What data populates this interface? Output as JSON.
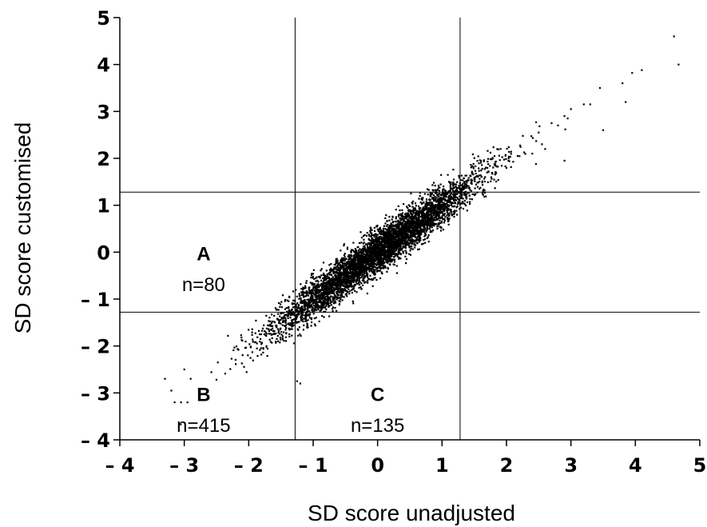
{
  "chart_data": {
    "type": "scatter",
    "xlabel": "SD score unadjusted",
    "ylabel": "SD score customised",
    "xlim": [
      -4,
      5
    ],
    "ylim": [
      -4,
      5
    ],
    "x_ticks": [
      -4,
      -3,
      -2,
      -1,
      0,
      1,
      2,
      3,
      4,
      5
    ],
    "y_ticks": [
      -4,
      -3,
      -2,
      -1,
      0,
      1,
      2,
      3,
      4,
      5
    ],
    "x_tick_labels": [
      "– 4",
      "– 3",
      "– 2",
      "– 1",
      "0",
      "1",
      "2",
      "3",
      "4",
      "5"
    ],
    "y_tick_labels": [
      "– 4",
      "– 3",
      "– 2",
      "– 1",
      "0",
      "1",
      "2",
      "3",
      "4",
      "5"
    ],
    "reference_lines": {
      "vertical": [
        -1.28,
        1.28
      ],
      "horizontal": [
        -1.28,
        1.28
      ]
    },
    "regions": [
      {
        "letter": "A",
        "count": "n=80",
        "x": -2.7,
        "y_letter": -0.17,
        "y_count": -0.83
      },
      {
        "letter": "B",
        "count": "n=415",
        "x": -2.7,
        "y_letter": -3.17,
        "y_count": -3.83
      },
      {
        "letter": "C",
        "count": "n=135",
        "x": 0.0,
        "y_letter": -3.17,
        "y_count": -3.83
      }
    ],
    "points": [
      [
        4.6,
        4.6
      ],
      [
        4.67,
        4.0
      ],
      [
        4.1,
        3.88
      ],
      [
        3.95,
        3.82
      ],
      [
        3.8,
        3.6
      ],
      [
        3.85,
        3.2
      ],
      [
        3.45,
        3.5
      ],
      [
        3.5,
        2.6
      ],
      [
        3.2,
        3.15
      ],
      [
        3.0,
        3.05
      ],
      [
        3.3,
        3.15
      ],
      [
        2.9,
        2.9
      ],
      [
        2.7,
        2.75
      ],
      [
        2.5,
        2.55
      ],
      [
        2.8,
        2.7
      ],
      [
        2.95,
        2.85
      ],
      [
        2.55,
        2.3
      ],
      [
        2.6,
        2.2
      ],
      [
        2.9,
        1.95
      ],
      [
        2.4,
        2.1
      ],
      [
        -3.3,
        -2.7
      ],
      [
        -3.15,
        -3.2
      ],
      [
        -3.05,
        -3.2
      ],
      [
        -2.95,
        -3.2
      ],
      [
        -3.2,
        -2.95
      ],
      [
        -3.0,
        -2.5
      ],
      [
        -2.9,
        -2.7
      ],
      [
        -1.2,
        -2.8
      ],
      [
        -1.25,
        -2.75
      ]
    ],
    "scatter_cloud": {
      "n": 5200,
      "x_center": 0.0,
      "x_sd": 0.78,
      "slope": 1.0,
      "noise_sd": 0.22,
      "seed": 20240611,
      "description_hidden": true
    }
  }
}
